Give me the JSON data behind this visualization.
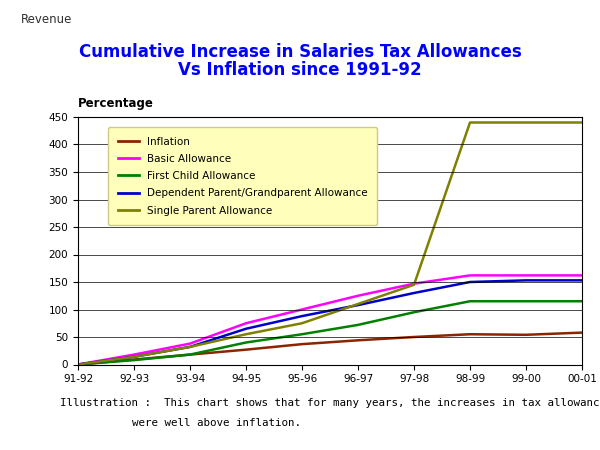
{
  "title_line1": "Cumulative Increase in Salaries Tax Allowances",
  "title_line2": "Vs Inflation since 1991-92",
  "revenue_label": "Revenue",
  "ylabel": "Percentage",
  "illustration_line1": "Illustration :  This chart shows that for many years, the increases in tax allowances",
  "illustration_line2": "were well above inflation.",
  "x_labels": [
    "91-92",
    "92-93",
    "93-94",
    "94-95",
    "95-96",
    "96-97",
    "97-98",
    "98-99",
    "99-00",
    "00-01"
  ],
  "ylim": [
    0,
    450
  ],
  "yticks": [
    0,
    50,
    100,
    150,
    200,
    250,
    300,
    350,
    400,
    450
  ],
  "series": [
    {
      "name": "Inflation",
      "color": "#8B2500",
      "values": [
        0,
        9,
        18,
        27,
        37,
        44,
        50,
        55,
        54,
        58
      ]
    },
    {
      "name": "Basic Allowance",
      "color": "#FF00FF",
      "values": [
        0,
        18,
        38,
        75,
        100,
        125,
        147,
        162,
        162,
        162
      ]
    },
    {
      "name": "First Child Allowance",
      "color": "#008000",
      "values": [
        0,
        8,
        18,
        40,
        55,
        72,
        95,
        115,
        115,
        115
      ]
    },
    {
      "name": "Dependent Parent/Grandparent Allowance",
      "color": "#0000CC",
      "values": [
        0,
        14,
        32,
        65,
        88,
        108,
        130,
        150,
        153,
        153
      ]
    },
    {
      "name": "Single Parent Allowance",
      "color": "#808000",
      "values": [
        0,
        14,
        32,
        55,
        75,
        110,
        145,
        440,
        440,
        440
      ]
    }
  ],
  "title_color": "#0000FF",
  "revenue_color": "#303030",
  "background_color": "#FFFFFF",
  "plot_bg_color": "#FFFFFF",
  "legend_bg_color": "#FFFFBB",
  "grid_color": "#000000"
}
